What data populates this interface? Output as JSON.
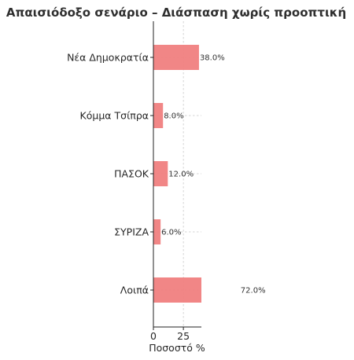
{
  "chart_data": {
    "type": "bar",
    "orientation": "horizontal",
    "title": "Απαισιόδοξο σενάριο – Διάσπαση χωρίς προοπτική",
    "xlabel": "Ποσοστό %",
    "ylabel": "",
    "categories": [
      "Νέα Δημοκρατία",
      "Κόμμα Τσίπρα",
      "ΠΑΣΟΚ",
      "ΣΥΡΙΖΑ",
      "Λοιπά"
    ],
    "values": [
      38.0,
      8.0,
      12.0,
      6.0,
      72.0
    ],
    "data_labels": [
      "38.0%",
      "8.0%",
      "12.0%",
      "6.0%",
      "72.0%"
    ],
    "x_ticks": [
      0,
      25
    ],
    "x_tick_labels": [
      "0",
      "25"
    ],
    "xlim": [
      0,
      40
    ],
    "grid": true,
    "legend": "none",
    "bar_color": "#f08080"
  }
}
